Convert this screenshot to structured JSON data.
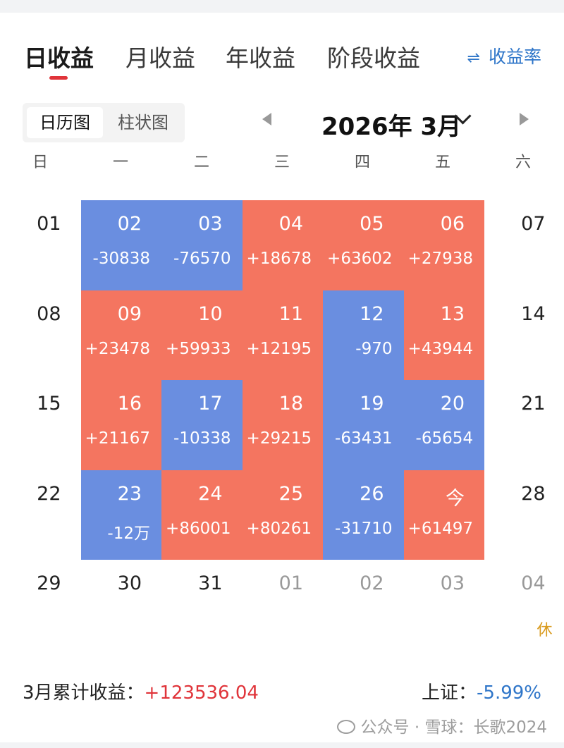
{
  "tabs": [
    "日收益",
    "月收益",
    "年收益",
    "阶段收益"
  ],
  "rate_toggle": {
    "icon": "swap-arrows-icon",
    "label": "收益率"
  },
  "view_switch": [
    "日历图",
    "柱状图"
  ],
  "month_label": "2026年 3月",
  "weekdays": [
    "日",
    "一",
    "二",
    "三",
    "四",
    "五",
    "六"
  ],
  "calendar": {
    "rows": [
      [
        {
          "day": "01",
          "kind": "plain"
        },
        {
          "day": "02",
          "value": "-30838",
          "kind": "down"
        },
        {
          "day": "03",
          "value": "-76570",
          "kind": "down"
        },
        {
          "day": "04",
          "value": "+18678",
          "kind": "up"
        },
        {
          "day": "05",
          "value": "+63602",
          "kind": "up"
        },
        {
          "day": "06",
          "value": "+27938",
          "kind": "up"
        },
        {
          "day": "07",
          "kind": "plain"
        }
      ],
      [
        {
          "day": "08",
          "kind": "plain"
        },
        {
          "day": "09",
          "value": "+23478",
          "kind": "up"
        },
        {
          "day": "10",
          "value": "+59933",
          "kind": "up"
        },
        {
          "day": "11",
          "value": "+12195",
          "kind": "up"
        },
        {
          "day": "12",
          "value": "-970",
          "kind": "down"
        },
        {
          "day": "13",
          "value": "+43944",
          "kind": "up"
        },
        {
          "day": "14",
          "kind": "plain"
        }
      ],
      [
        {
          "day": "15",
          "kind": "plain"
        },
        {
          "day": "16",
          "value": "+21167",
          "kind": "up"
        },
        {
          "day": "17",
          "value": "-10338",
          "kind": "down"
        },
        {
          "day": "18",
          "value": "+29215",
          "kind": "up"
        },
        {
          "day": "19",
          "value": "-63431",
          "kind": "down"
        },
        {
          "day": "20",
          "value": "-65654",
          "kind": "down"
        },
        {
          "day": "21",
          "kind": "plain"
        }
      ],
      [
        {
          "day": "22",
          "kind": "plain"
        },
        {
          "day": "23",
          "value": "-12万",
          "kind": "down"
        },
        {
          "day": "24",
          "value": "+86001",
          "kind": "up"
        },
        {
          "day": "25",
          "value": "+80261",
          "kind": "up"
        },
        {
          "day": "26",
          "value": "-31710",
          "kind": "down"
        },
        {
          "day": "今",
          "value": "+61497",
          "kind": "up"
        },
        {
          "day": "28",
          "kind": "plain"
        }
      ],
      [
        {
          "day": "29",
          "kind": "plain"
        },
        {
          "day": "30",
          "kind": "plain"
        },
        {
          "day": "31",
          "kind": "plain"
        },
        {
          "day": "01",
          "kind": "muted"
        },
        {
          "day": "02",
          "kind": "muted"
        },
        {
          "day": "03",
          "kind": "muted"
        },
        {
          "day": "04",
          "kind": "muted",
          "tag": "休"
        }
      ]
    ]
  },
  "colors": {
    "up": "#f47560",
    "down": "#6a8ee0",
    "accent_red": "#e0343a",
    "accent_blue": "#2f76c9"
  },
  "footer": {
    "sum_label": "3月累计收益：",
    "sum_value": "+123536.04",
    "index_label": "上证：",
    "index_value": "-5.99%"
  },
  "watermark": "公众号 · 雪球：长歌2024"
}
